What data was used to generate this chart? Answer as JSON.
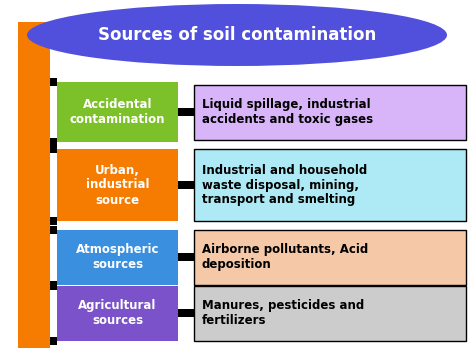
{
  "title": "Sources of soil contamination",
  "title_bg": "#5050dd",
  "title_text_color": "white",
  "background_color": "white",
  "spine_color": "#f57c00",
  "rows": [
    {
      "label": "Accidental\ncontamination",
      "label_bg": "#7dc12a",
      "label_text_color": "white",
      "desc": "Liquid spillage, industrial\naccidents and toxic gases",
      "desc_bg": "#d8b4f8",
      "desc_text_color": "black"
    },
    {
      "label": "Urban,\nindustrial\nsource",
      "label_bg": "#f57c00",
      "label_text_color": "white",
      "desc": "Industrial and household\nwaste disposal, mining,\ntransport and smelting",
      "desc_bg": "#aeeaf5",
      "desc_text_color": "black"
    },
    {
      "label": "Atmospheric\nsources",
      "label_bg": "#3a8fdf",
      "label_text_color": "white",
      "desc": "Airborne pollutants, Acid\ndeposition",
      "desc_bg": "#f5c8a8",
      "desc_text_color": "black"
    },
    {
      "label": "Agricultural\nsources",
      "label_bg": "#7b52c9",
      "label_text_color": "white",
      "desc": "Manures, pesticides and\nfertilizers",
      "desc_bg": "#cccccc",
      "desc_text_color": "black"
    }
  ],
  "connector_color": "black",
  "connector_lw": 6
}
